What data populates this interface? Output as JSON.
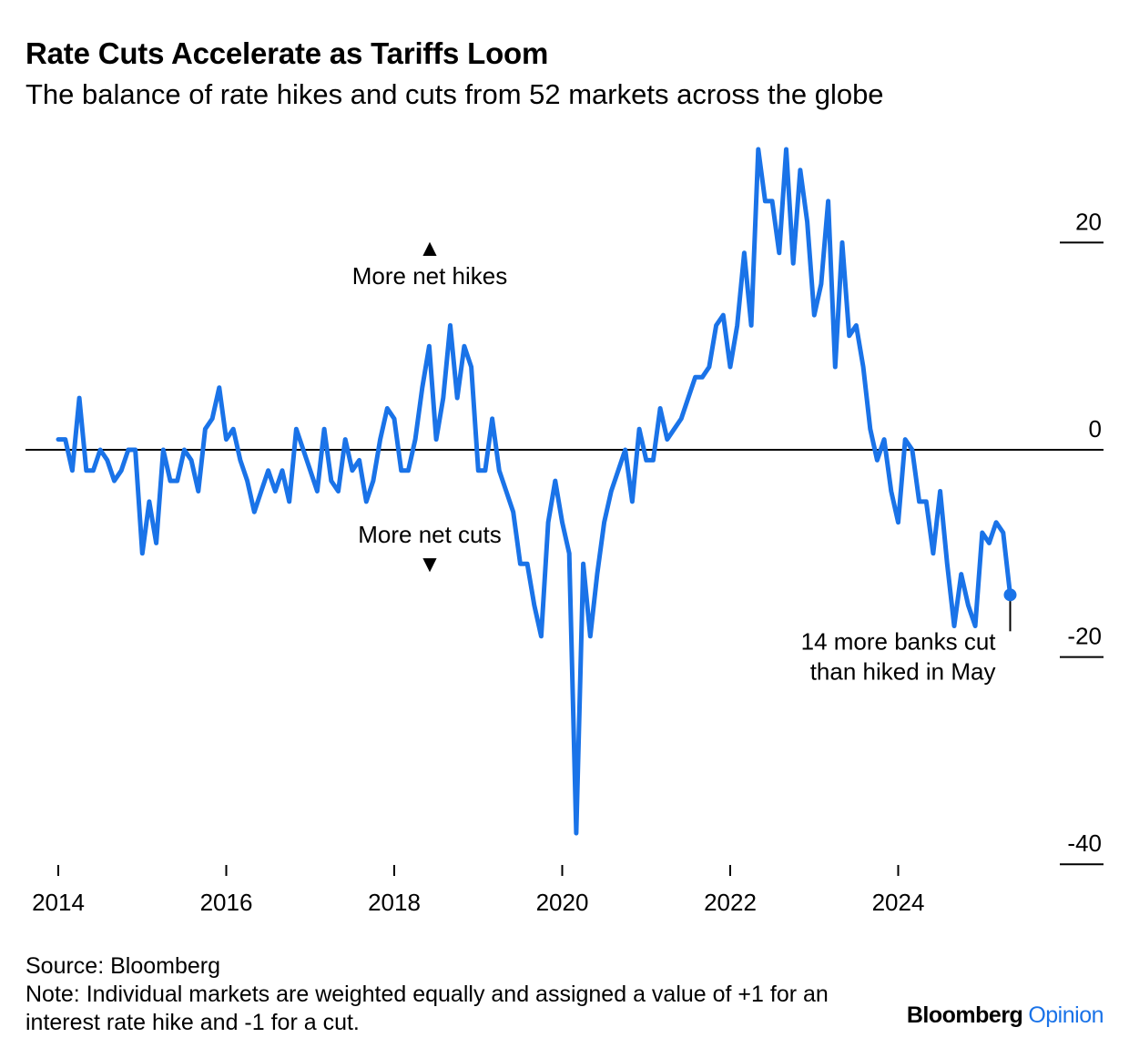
{
  "chart_data": {
    "type": "line",
    "title": "Rate Cuts Accelerate as Tariffs Loom",
    "subtitle": "The balance of rate hikes and cuts from 52 markets across the globe",
    "x_start": "2014-01",
    "x_tick_labels": [
      "2014",
      "2016",
      "2018",
      "2020",
      "2022",
      "2024"
    ],
    "y_tick_labels": [
      "20",
      "0",
      "-20",
      "-40"
    ],
    "y_ticks": [
      20,
      0,
      -20,
      -40
    ],
    "ylim": [
      -40,
      28
    ],
    "grid": false,
    "series": [
      {
        "color": "#1a73e8",
        "values": [
          1,
          1,
          -2,
          5,
          -2,
          -2,
          0,
          -1,
          -3,
          -2,
          0,
          0,
          -10,
          -5,
          -9,
          0,
          -3,
          -3,
          0,
          -1,
          -4,
          2,
          3,
          6,
          1,
          2,
          -1,
          -3,
          -6,
          -4,
          -2,
          -4,
          -2,
          -5,
          2,
          0,
          -2,
          -4,
          2,
          -3,
          -4,
          1,
          -2,
          -1,
          -5,
          -3,
          1,
          4,
          3,
          -2,
          -2,
          1,
          6,
          10,
          1,
          5,
          12,
          5,
          10,
          8,
          -2,
          -2,
          3,
          -2,
          -4,
          -6,
          -11,
          -11,
          -15,
          -18,
          -7,
          -3,
          -7,
          -10,
          -37,
          -11,
          -18,
          -12,
          -7,
          -4,
          -2,
          0,
          -5,
          2,
          -1,
          -1,
          4,
          1,
          2,
          3,
          5,
          7,
          7,
          8,
          12,
          13,
          8,
          12,
          19,
          12,
          29,
          24,
          24,
          19,
          29,
          18,
          27,
          22,
          13,
          16,
          24,
          8,
          20,
          11,
          12,
          8,
          2,
          -1,
          1,
          -4,
          -7,
          1,
          0,
          -5,
          -5,
          -10,
          -4,
          -11,
          -17,
          -12,
          -15,
          -17,
          -8,
          -9,
          -7,
          -8,
          -14
        ]
      }
    ],
    "last_point_label": [
      "14 more banks cut",
      "than hiked in May"
    ],
    "annotations": {
      "up_label": "More net hikes",
      "down_label": "More net cuts",
      "up_symbol": "▲",
      "down_symbol": "▼"
    }
  },
  "footer": {
    "source": "Source: Bloomberg",
    "note_line1": "Note: Individual markets are weighted equally and assigned a value of +1 for an",
    "note_line2": "interest rate hike and -1 for a cut."
  },
  "brand": {
    "name": "Bloomberg",
    "section": "Opinion"
  }
}
